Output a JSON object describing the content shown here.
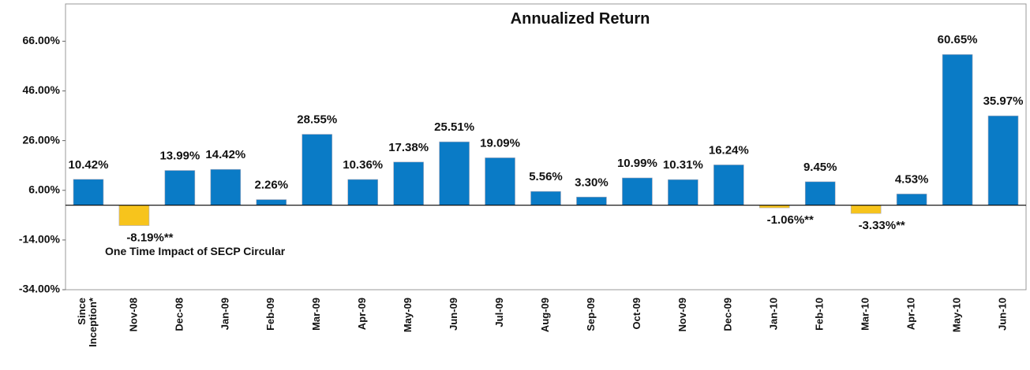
{
  "chart_data": {
    "type": "bar",
    "title": "Annualized Return",
    "categories": [
      "Since Inception*",
      "Nov-08",
      "Dec-08",
      "Jan-09",
      "Feb-09",
      "Mar-09",
      "Apr-09",
      "May-09",
      "Jun-09",
      "Jul-09",
      "Aug-09",
      "Sep-09",
      "Oct-09",
      "Nov-09",
      "Dec-09",
      "Jan-10",
      "Feb-10",
      "Mar-10",
      "Apr-10",
      "May-10",
      "Jun-10"
    ],
    "values": [
      10.42,
      -8.19,
      13.99,
      14.42,
      2.26,
      28.55,
      10.36,
      17.38,
      25.51,
      19.09,
      5.56,
      3.3,
      10.99,
      10.31,
      16.24,
      -1.06,
      9.45,
      -3.33,
      4.53,
      60.65,
      35.97
    ],
    "value_labels": [
      "10.42%",
      "-8.19%**",
      "13.99%",
      "14.42%",
      "2.26%",
      "28.55%",
      "10.36%",
      "17.38%",
      "25.51%",
      "19.09%",
      "5.56%",
      "3.30%",
      "10.99%",
      "10.31%",
      "16.24%",
      "-1.06%**",
      "9.45%",
      "-3.33%**",
      "4.53%",
      "60.65%",
      "35.97%"
    ],
    "color": "#0a7bc6",
    "negative_color": "#f7c41c",
    "annotation": "One Time Impact of SECP Circular",
    "ylim": [
      -34,
      81
    ],
    "yticks": [
      {
        "value": -34,
        "label": "-34.00%"
      },
      {
        "value": -14,
        "label": "-14.00%"
      },
      {
        "value": 6,
        "label": "6.00%"
      },
      {
        "value": 26,
        "label": "26.00%"
      },
      {
        "value": 46,
        "label": "46.00%"
      },
      {
        "value": 66,
        "label": "66.00%"
      }
    ],
    "grid": false
  }
}
